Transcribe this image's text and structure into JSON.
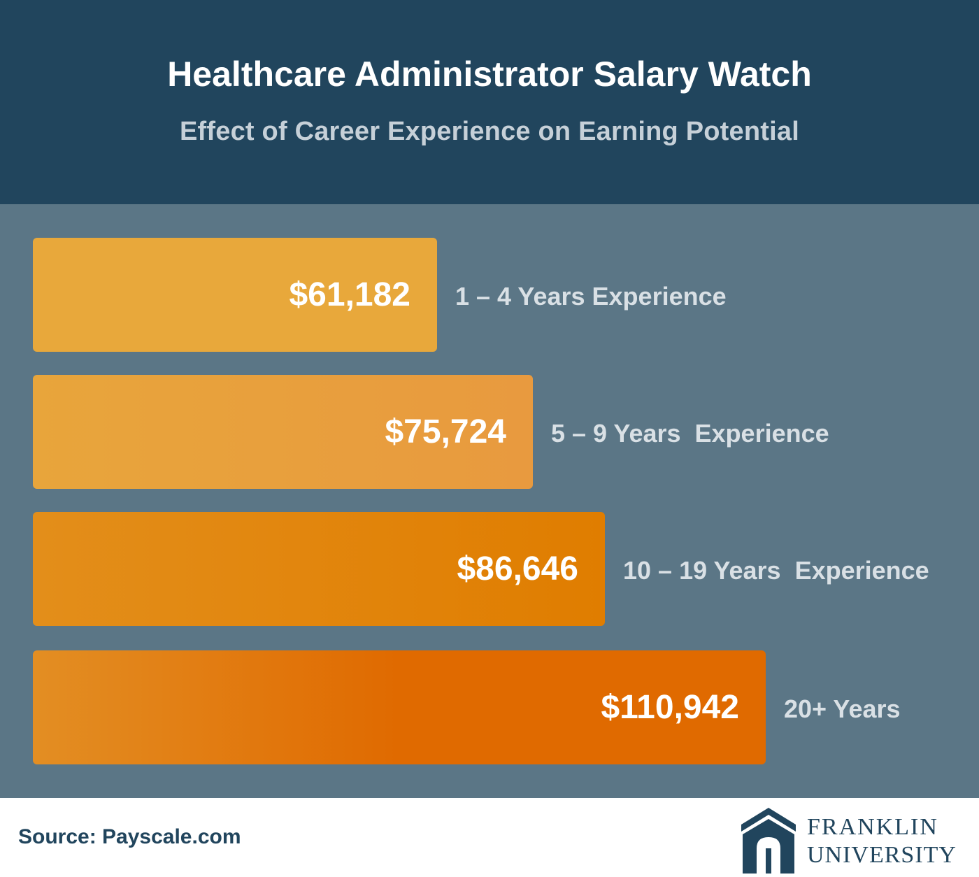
{
  "header": {
    "title": "Healthcare Administrator Salary Watch",
    "subtitle": "Effect of Career Experience on Earning Potential"
  },
  "chart_data": {
    "type": "bar",
    "orientation": "horizontal",
    "categories": [
      "1 – 4 Years Experience",
      "5 – 9 Years  Experience",
      "10 – 19 Years  Experience",
      "20+ Years"
    ],
    "values": [
      61182,
      75724,
      86646,
      110942
    ],
    "value_labels": [
      "$61,182",
      "$75,724",
      "$86,646",
      "$110,942"
    ],
    "title": "Healthcare Administrator Salary Watch",
    "subtitle": "Effect of Career Experience on Earning Potential",
    "xlabel": "",
    "ylabel": "",
    "grid": false,
    "colors": {
      "bar_gradient_start": [
        "#e8a83b",
        "#e8a53b",
        "#e38e1a",
        "#e38e23"
      ],
      "bar_gradient_end": [
        "#e8a83b",
        "#e89a3f",
        "#e07d00",
        "#e06a00"
      ],
      "plot_background": "#5b7686",
      "header_background": "#21455d"
    }
  },
  "footer": {
    "source": "Source: Payscale.com",
    "logo_name": "FRANKLIN",
    "logo_sub": "UNIVERSITY",
    "logo_icon": "franklin-arch-icon"
  }
}
